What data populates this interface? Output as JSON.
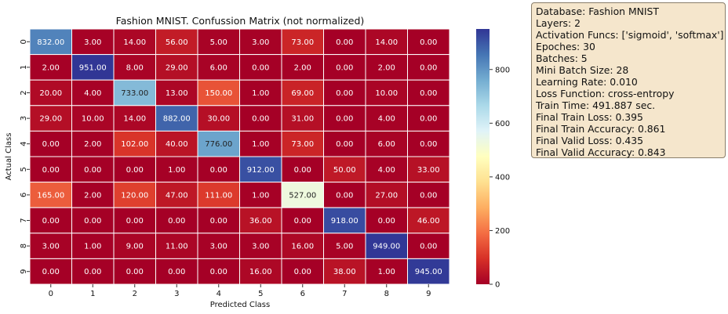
{
  "chart_data": {
    "type": "heatmap",
    "title": "Fashion MNIST. Confussion Matrix (not normalized)",
    "xlabel": "Predicted Class",
    "ylabel": "Actual Class",
    "x_ticks": [
      "0",
      "1",
      "2",
      "3",
      "4",
      "5",
      "6",
      "7",
      "8",
      "9"
    ],
    "y_ticks": [
      "0",
      "1",
      "2",
      "3",
      "4",
      "5",
      "6",
      "7",
      "8",
      "9"
    ],
    "values": [
      [
        832,
        3,
        14,
        56,
        5,
        3,
        73,
        0,
        14,
        0
      ],
      [
        2,
        951,
        8,
        29,
        6,
        0,
        2,
        0,
        2,
        0
      ],
      [
        20,
        4,
        733,
        13,
        150,
        1,
        69,
        0,
        10,
        0
      ],
      [
        29,
        10,
        14,
        882,
        30,
        0,
        31,
        0,
        4,
        0
      ],
      [
        0,
        2,
        102,
        40,
        776,
        1,
        73,
        0,
        6,
        0
      ],
      [
        0,
        0,
        0,
        1,
        0,
        912,
        0,
        50,
        4,
        33
      ],
      [
        165,
        2,
        120,
        47,
        111,
        1,
        527,
        0,
        27,
        0
      ],
      [
        0,
        0,
        0,
        0,
        0,
        36,
        0,
        918,
        0,
        46
      ],
      [
        3,
        1,
        9,
        11,
        3,
        3,
        16,
        5,
        949,
        0
      ],
      [
        0,
        0,
        0,
        0,
        0,
        16,
        0,
        38,
        1,
        945
      ]
    ],
    "value_format": "2 decimals",
    "colormap": "RdYlBu",
    "vmin": 0,
    "vmax": 951,
    "colorbar_ticks": [
      0,
      200,
      400,
      600,
      800
    ],
    "grid": "white cell borders"
  },
  "info_box": {
    "lines": [
      "Database: Fashion MNIST",
      "Layers: 2",
      "Activation Funcs: ['sigmoid', 'softmax']",
      "Epoches: 30",
      "Batches: 5",
      "Mini Batch Size: 28",
      "Learning Rate: 0.010",
      "Loss Function: cross-entropy",
      "Train Time: 491.887 sec.",
      "Final Train Loss: 0.395",
      "Final Train Accuracy: 0.861",
      "Final Valid Loss: 0.435",
      "Final Valid Accuracy: 0.843"
    ],
    "background": "#f5e6cc"
  }
}
